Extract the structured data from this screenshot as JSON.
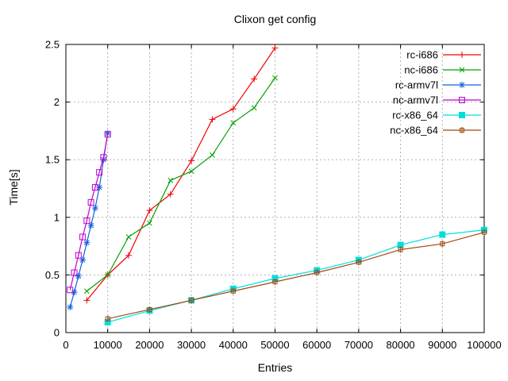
{
  "chart_data": {
    "type": "line",
    "title": "Clixon get config",
    "xlabel": "Entries",
    "ylabel": "Time[s]",
    "xlim": [
      0,
      100000
    ],
    "ylim": [
      0,
      2.5
    ],
    "x_ticks": [
      0,
      10000,
      20000,
      30000,
      40000,
      50000,
      60000,
      70000,
      80000,
      90000,
      100000
    ],
    "x_tick_labels": [
      "0",
      "10000",
      "20000",
      "30000",
      "40000",
      "50000",
      "60000",
      "70000",
      "80000",
      "90000",
      "100000"
    ],
    "y_ticks": [
      0,
      0.5,
      1,
      1.5,
      2,
      2.5
    ],
    "y_tick_labels": [
      "0",
      "0.5",
      "1",
      "1.5",
      "2",
      "2.5"
    ],
    "grid": true,
    "legend_position": "top-right-inside",
    "series": [
      {
        "name": "rc-i686",
        "color": "#ee0000",
        "marker": "plus",
        "x": [
          5000,
          10000,
          15000,
          20000,
          25000,
          30000,
          35000,
          40000,
          45000,
          50000
        ],
        "y": [
          0.28,
          0.5,
          0.67,
          1.06,
          1.2,
          1.49,
          1.85,
          1.94,
          2.2,
          2.47
        ]
      },
      {
        "name": "nc-i686",
        "color": "#00a000",
        "marker": "cross",
        "x": [
          5000,
          10000,
          15000,
          20000,
          25000,
          30000,
          35000,
          40000,
          45000,
          50000
        ],
        "y": [
          0.36,
          0.5,
          0.83,
          0.95,
          1.32,
          1.4,
          1.54,
          1.82,
          1.95,
          2.21
        ]
      },
      {
        "name": "rc-armv7l",
        "color": "#1560dd",
        "marker": "asterisk",
        "x": [
          1000,
          2000,
          3000,
          4000,
          5000,
          6000,
          7000,
          8000,
          9000,
          10000
        ],
        "y": [
          0.22,
          0.35,
          0.49,
          0.63,
          0.78,
          0.93,
          1.08,
          1.26,
          1.5,
          1.73
        ]
      },
      {
        "name": "nc-armv7l",
        "color": "#bf00cf",
        "marker": "open-square",
        "x": [
          1000,
          2000,
          3000,
          4000,
          5000,
          6000,
          7000,
          8000,
          9000,
          10000
        ],
        "y": [
          0.37,
          0.52,
          0.67,
          0.83,
          0.97,
          1.13,
          1.26,
          1.39,
          1.52,
          1.72
        ]
      },
      {
        "name": "rc-x86_64",
        "color": "#00dddd",
        "marker": "filled-square",
        "x": [
          10000,
          20000,
          30000,
          40000,
          50000,
          60000,
          70000,
          80000,
          90000,
          100000
        ],
        "y": [
          0.09,
          0.19,
          0.28,
          0.38,
          0.47,
          0.54,
          0.63,
          0.76,
          0.85,
          0.89
        ]
      },
      {
        "name": "nc-x86_64",
        "color": "#a5480f",
        "marker": "boxed-plus",
        "x": [
          10000,
          20000,
          30000,
          40000,
          50000,
          60000,
          70000,
          80000,
          90000,
          100000
        ],
        "y": [
          0.12,
          0.2,
          0.28,
          0.36,
          0.44,
          0.52,
          0.61,
          0.72,
          0.77,
          0.87
        ]
      }
    ],
    "colors": {
      "background": "#ffffff",
      "frame": "#000000",
      "grid": "#b0b0b0",
      "text": "#000000"
    }
  }
}
